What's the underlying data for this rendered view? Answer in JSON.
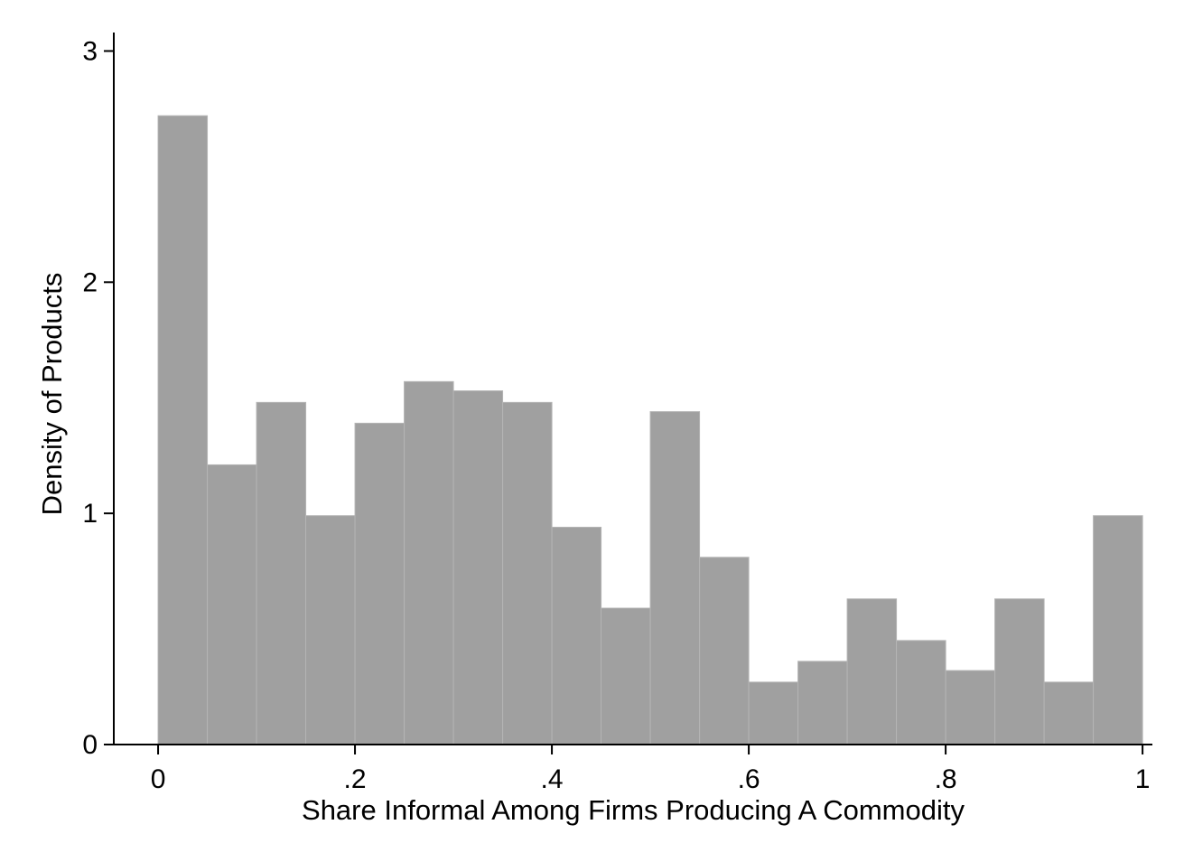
{
  "chart_data": {
    "type": "bar",
    "title": "",
    "xlabel": "Share Informal Among Firms Producing A Commodity",
    "ylabel": "Density of Products",
    "bin_width": 0.05,
    "bins": [
      {
        "x0": 0.0,
        "x1": 0.05,
        "density": 2.72
      },
      {
        "x0": 0.05,
        "x1": 0.1,
        "density": 1.21
      },
      {
        "x0": 0.1,
        "x1": 0.15,
        "density": 1.48
      },
      {
        "x0": 0.15,
        "x1": 0.2,
        "density": 0.99
      },
      {
        "x0": 0.2,
        "x1": 0.25,
        "density": 1.39
      },
      {
        "x0": 0.25,
        "x1": 0.3,
        "density": 1.57
      },
      {
        "x0": 0.3,
        "x1": 0.35,
        "density": 1.53
      },
      {
        "x0": 0.35,
        "x1": 0.4,
        "density": 1.48
      },
      {
        "x0": 0.4,
        "x1": 0.45,
        "density": 0.94
      },
      {
        "x0": 0.45,
        "x1": 0.5,
        "density": 0.59
      },
      {
        "x0": 0.5,
        "x1": 0.55,
        "density": 1.44
      },
      {
        "x0": 0.55,
        "x1": 0.6,
        "density": 0.81
      },
      {
        "x0": 0.6,
        "x1": 0.65,
        "density": 0.27
      },
      {
        "x0": 0.65,
        "x1": 0.7,
        "density": 0.36
      },
      {
        "x0": 0.7,
        "x1": 0.75,
        "density": 0.63
      },
      {
        "x0": 0.75,
        "x1": 0.8,
        "density": 0.45
      },
      {
        "x0": 0.8,
        "x1": 0.85,
        "density": 0.32
      },
      {
        "x0": 0.85,
        "x1": 0.9,
        "density": 0.63
      },
      {
        "x0": 0.9,
        "x1": 0.95,
        "density": 0.27
      },
      {
        "x0": 0.95,
        "x1": 1.0,
        "density": 0.99
      }
    ],
    "xlim": [
      -0.045,
      1.01
    ],
    "ylim": [
      0,
      3.08
    ],
    "x_ticks": [
      {
        "value": 0,
        "label": "0"
      },
      {
        "value": 0.2,
        "label": ".2"
      },
      {
        "value": 0.4,
        "label": ".4"
      },
      {
        "value": 0.6,
        "label": ".6"
      },
      {
        "value": 0.8,
        "label": ".8"
      },
      {
        "value": 1,
        "label": "1"
      }
    ],
    "y_ticks": [
      {
        "value": 0,
        "label": "0"
      },
      {
        "value": 1,
        "label": "1"
      },
      {
        "value": 2,
        "label": "2"
      },
      {
        "value": 3,
        "label": "3"
      }
    ],
    "bar_color": "#a0a0a0",
    "grid": false,
    "legend": "none"
  }
}
